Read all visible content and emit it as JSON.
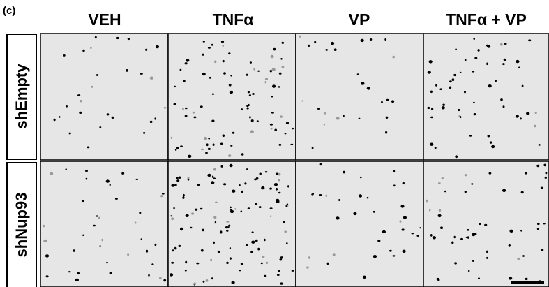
{
  "panel_label": "(c)",
  "columns": [
    "VEH",
    "TNFα",
    "VP",
    "TNFα + VP"
  ],
  "rows": [
    "shEmpty",
    "shNup93"
  ]
}
